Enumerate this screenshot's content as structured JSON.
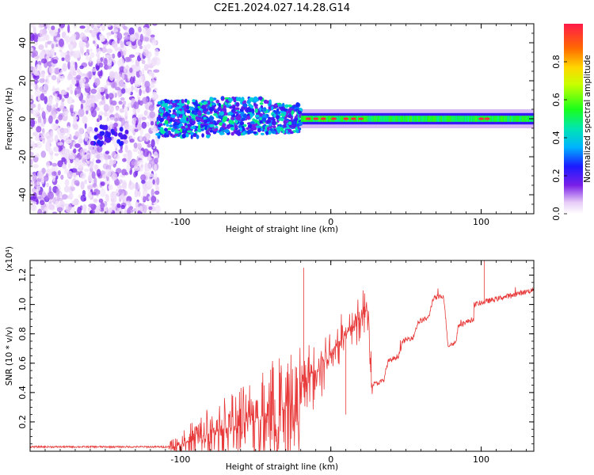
{
  "figure": {
    "title": "C2E1.2024.027.14.28.G14"
  },
  "chart_data": [
    {
      "type": "heatmap",
      "xlabel": "Height of straight line (km)",
      "ylabel": "Frequency (Hz)",
      "xlim": [
        -200,
        135
      ],
      "ylim": [
        -50,
        50
      ],
      "xticks": [
        -100,
        0,
        100
      ],
      "xtick_labels": [
        "-100",
        "0",
        "100"
      ],
      "yticks": [
        -40,
        -20,
        0,
        20,
        40
      ],
      "ytick_labels": [
        "-40",
        "-20",
        "0",
        "20",
        "40"
      ],
      "colorbar": {
        "label": "Normalized spectral amplitude",
        "range": [
          0,
          1
        ],
        "ticks": [
          0.0,
          0.2,
          0.4,
          0.6,
          0.8
        ],
        "tick_labels": [
          "0.0",
          "0.2",
          "0.4",
          "0.6",
          "0.8"
        ],
        "colormap": "rainbow"
      },
      "regions": [
        {
          "x_range": [
            -200,
            -115
          ],
          "freq_range": [
            -50,
            50
          ],
          "amplitude": 0.1,
          "pattern": "broadband noise"
        },
        {
          "x_range": [
            -115,
            -20
          ],
          "freq_center": 0,
          "half_width": 6,
          "amplitude": 0.3
        },
        {
          "x_range": [
            -20,
            135
          ],
          "freq_center": 0,
          "half_width": 3,
          "amplitude": 0.55
        }
      ]
    },
    {
      "type": "line",
      "xlabel": "Height of straight line (km)",
      "ylabel": "SNR (10 * v/v)",
      "y_multiplier": "(x10⁴)",
      "xlim": [
        -200,
        135
      ],
      "ylim": [
        0,
        1.3
      ],
      "xticks": [
        -100,
        0,
        100
      ],
      "xtick_labels": [
        "-100",
        "0",
        "100"
      ],
      "yticks": [
        0.2,
        0.4,
        0.6,
        0.8,
        1.0,
        1.2
      ],
      "ytick_labels": [
        "0.2",
        "0.4",
        "0.6",
        "0.8",
        "1.0",
        "1.2"
      ],
      "line_color": "#e83a3a",
      "baseline_segments": [
        {
          "x": [
            -200,
            -105
          ],
          "y": [
            0.03,
            0.03
          ]
        },
        {
          "x": [
            -105,
            -20
          ],
          "y": [
            0.03,
            0.33
          ]
        },
        {
          "x": [
            -20,
            25
          ],
          "y": [
            0.45,
            0.97
          ]
        },
        {
          "x": [
            27,
            35
          ],
          "y": [
            0.45,
            0.48
          ]
        },
        {
          "x": [
            38,
            45
          ],
          "y": [
            0.61,
            0.65
          ]
        },
        {
          "x": [
            48,
            55
          ],
          "y": [
            0.75,
            0.78
          ]
        },
        {
          "x": [
            58,
            65
          ],
          "y": [
            0.88,
            0.91
          ]
        },
        {
          "x": [
            68,
            75
          ],
          "y": [
            1.04,
            1.06
          ]
        },
        {
          "x": [
            78,
            83
          ],
          "y": [
            0.72,
            0.74
          ]
        },
        {
          "x": [
            85,
            95
          ],
          "y": [
            0.86,
            0.9
          ]
        },
        {
          "x": [
            95,
            135
          ],
          "y": [
            1.0,
            1.1
          ]
        }
      ],
      "annotations": [
        {
          "x": -18,
          "y": 1.25,
          "note": "spike"
        },
        {
          "x": 10,
          "y": 0.25,
          "note": "dip"
        },
        {
          "x": 102,
          "y": 1.3,
          "note": "spike"
        }
      ]
    }
  ]
}
